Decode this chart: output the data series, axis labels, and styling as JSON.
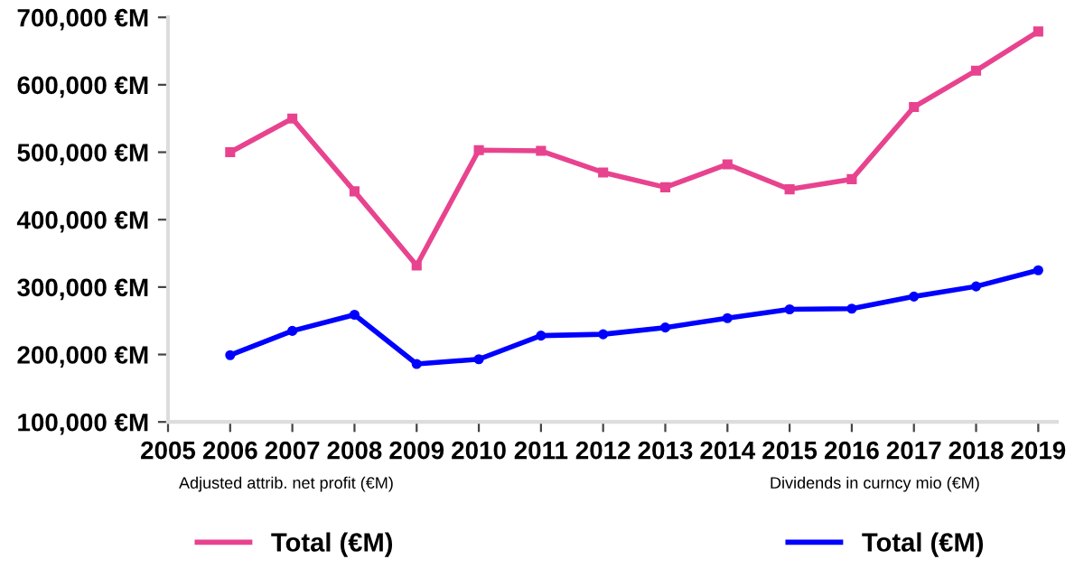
{
  "chart_data": {
    "type": "line",
    "x": [
      2006,
      2007,
      2008,
      2009,
      2010,
      2011,
      2012,
      2013,
      2014,
      2015,
      2016,
      2017,
      2018,
      2019
    ],
    "series": [
      {
        "name": "Total (€M)",
        "color": "#e8438f",
        "marker": "square",
        "values": [
          500000,
          550000,
          442000,
          332000,
          503000,
          502000,
          470000,
          448000,
          482000,
          445000,
          460000,
          567000,
          621000,
          679000
        ]
      },
      {
        "name": "Total (€M)",
        "color": "#0000ff",
        "marker": "circle",
        "values": [
          199000,
          235000,
          259000,
          186000,
          193000,
          228000,
          230000,
          240000,
          254000,
          267000,
          268000,
          286000,
          301000,
          325000
        ]
      }
    ],
    "annotations": [
      "Adjusted attrib. net profit (€M)",
      "Dividends in curncy mio (€M)"
    ],
    "xlim": [
      2005,
      2019.3
    ],
    "xticks": [
      2005,
      2006,
      2007,
      2008,
      2009,
      2010,
      2011,
      2012,
      2013,
      2014,
      2015,
      2016,
      2017,
      2018,
      2019
    ],
    "ylim": [
      100000,
      700000
    ],
    "yticks": [
      {
        "value": 100000,
        "label": "100,000 €M"
      },
      {
        "value": 200000,
        "label": "200,000 €M"
      },
      {
        "value": 300000,
        "label": "300,000 €M"
      },
      {
        "value": 400000,
        "label": "400,000 €M"
      },
      {
        "value": 500000,
        "label": "500,000 €M"
      },
      {
        "value": 600000,
        "label": "600,000 €M"
      },
      {
        "value": 700000,
        "label": "700,000 €M"
      }
    ],
    "grid": false,
    "legend": "bottom",
    "line_style": "solid"
  }
}
